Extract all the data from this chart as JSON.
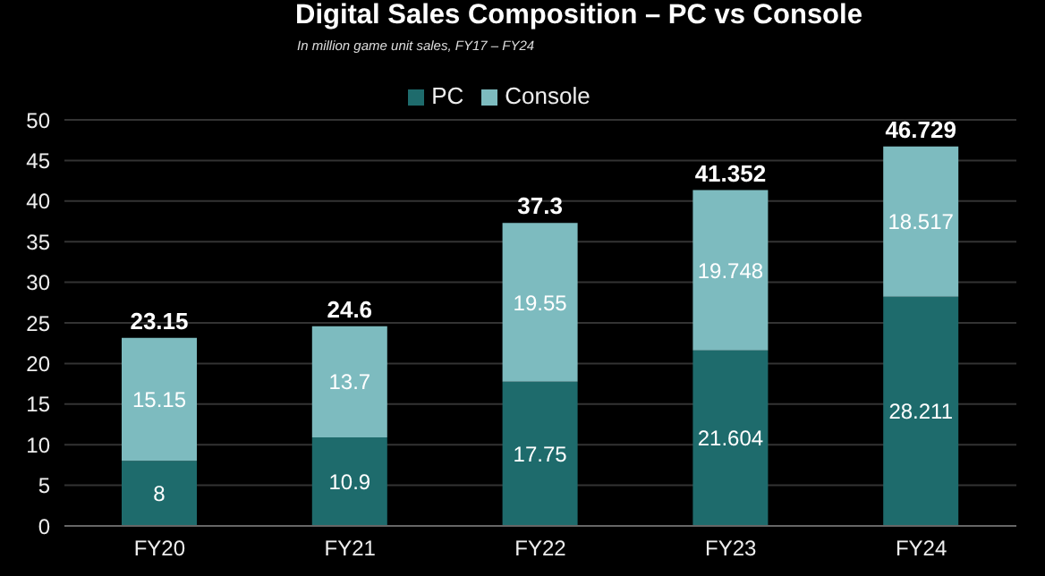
{
  "chart_data": {
    "type": "bar",
    "title": "Digital Sales Composition – PC vs Console",
    "subtitle": "In million game unit sales, FY17 – FY24",
    "categories": [
      "FY20",
      "FY21",
      "FY22",
      "FY23",
      "FY24"
    ],
    "series": [
      {
        "name": "PC",
        "color": "#1e6b6c",
        "values": [
          8,
          10.9,
          17.75,
          21.604,
          28.211
        ]
      },
      {
        "name": "Console",
        "color": "#7dbbbf",
        "values": [
          15.15,
          13.7,
          19.55,
          19.748,
          18.517
        ]
      }
    ],
    "stacked": true,
    "data_labels": true,
    "totals": [
      "23.15",
      "24.6",
      "37.3",
      "41.352",
      "46.729"
    ],
    "ylim": [
      0,
      50
    ],
    "yticks": [
      0,
      5,
      10,
      15,
      20,
      25,
      30,
      35,
      40,
      45,
      50
    ],
    "grid": "y",
    "legend": "top"
  }
}
